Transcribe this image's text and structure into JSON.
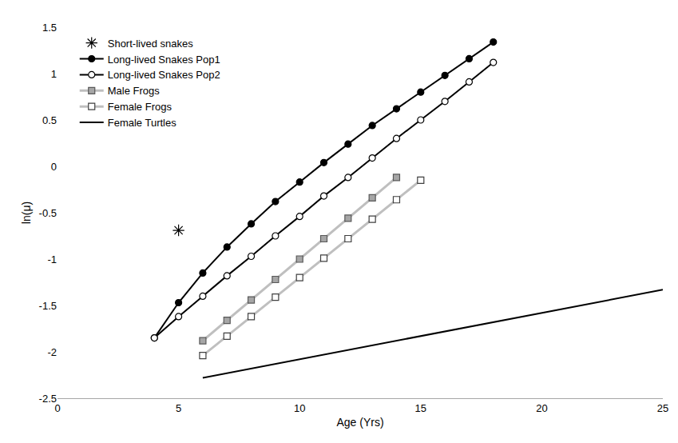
{
  "chart_data": {
    "type": "line",
    "x_label": "Age (Yrs)",
    "y_label": "ln(μ)",
    "xlim": [
      0,
      25
    ],
    "xticks": [
      0,
      5,
      10,
      15,
      20,
      25
    ],
    "ylim": [
      -2.5,
      1.5
    ],
    "yticks": [
      -2.5,
      -2,
      -1.5,
      -1,
      -0.5,
      0,
      0.5,
      1,
      1.5
    ],
    "grid": false,
    "legend": "upper left",
    "series": [
      {
        "name": "Short-lived snakes",
        "type": "scatter",
        "color": "#000000",
        "marker": "asterisk",
        "line_style": "none",
        "x": [
          5
        ],
        "values": [
          -0.69
        ]
      },
      {
        "name": "Long-lived Snakes Pop1",
        "type": "line",
        "color": "#000000",
        "marker": "circle",
        "line_style": "solid",
        "x": [
          4,
          5,
          6,
          7,
          8,
          9,
          10,
          11,
          12,
          13,
          14,
          15,
          16,
          17,
          18
        ],
        "values": [
          -1.85,
          -1.47,
          -1.15,
          -0.87,
          -0.62,
          -0.38,
          -0.17,
          0.04,
          0.24,
          0.44,
          0.62,
          0.8,
          0.98,
          1.16,
          1.34
        ]
      },
      {
        "name": "Long-lived Snakes Pop2",
        "type": "line",
        "color": "#000000",
        "marker": "circle-open",
        "line_style": "solid",
        "x": [
          4,
          5,
          6,
          7,
          8,
          9,
          10,
          11,
          12,
          13,
          14,
          15,
          16,
          17,
          18
        ],
        "values": [
          -1.85,
          -1.62,
          -1.4,
          -1.18,
          -0.97,
          -0.75,
          -0.54,
          -0.32,
          -0.12,
          0.09,
          0.3,
          0.5,
          0.7,
          0.91,
          1.12
        ]
      },
      {
        "name": "Male Frogs",
        "type": "line",
        "color": "#bfbfbf",
        "marker": "square",
        "line_style": "solid",
        "x": [
          6,
          7,
          8,
          9,
          10,
          11,
          12,
          13,
          14
        ],
        "values": [
          -1.88,
          -1.66,
          -1.44,
          -1.22,
          -1.0,
          -0.78,
          -0.56,
          -0.34,
          -0.12
        ]
      },
      {
        "name": "Female Frogs",
        "type": "line",
        "color": "#bfbfbf",
        "marker": "square-open",
        "line_style": "solid",
        "x": [
          6,
          7,
          8,
          9,
          10,
          11,
          12,
          13,
          14,
          15
        ],
        "values": [
          -2.04,
          -1.83,
          -1.62,
          -1.41,
          -1.2,
          -0.99,
          -0.78,
          -0.57,
          -0.36,
          -0.15
        ]
      },
      {
        "name": "Female Turtles",
        "type": "line",
        "color": "#000000",
        "marker": "none",
        "line_style": "solid",
        "x": [
          6,
          25
        ],
        "values": [
          -2.28,
          -1.33
        ]
      }
    ]
  }
}
